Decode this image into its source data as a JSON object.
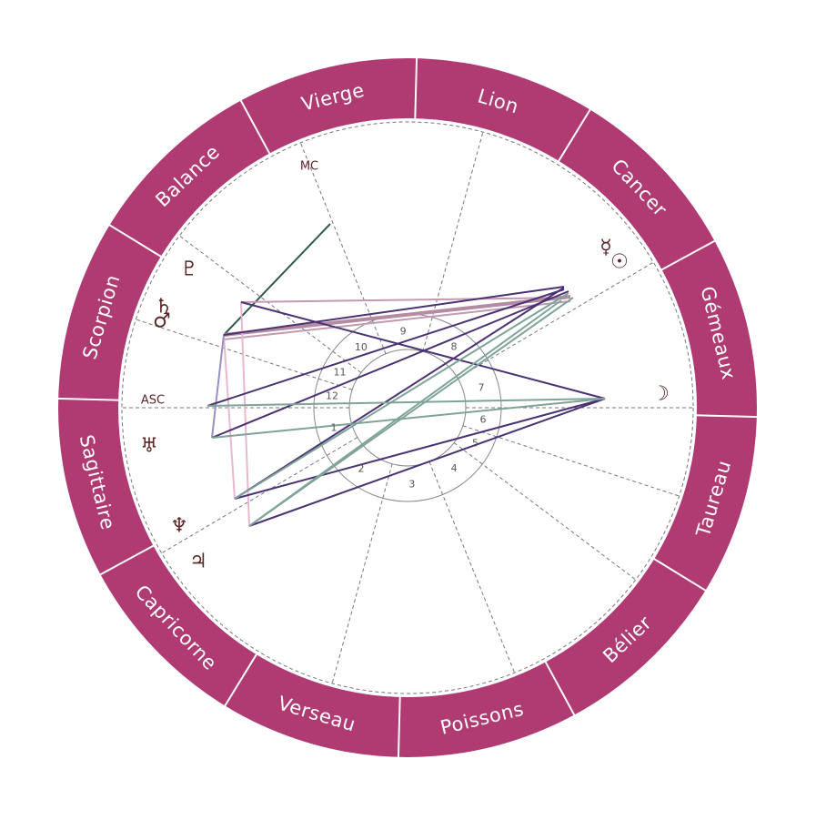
{
  "zodiac": [
    "Gémeaux",
    "Cancer",
    "Lion",
    "Vierge",
    "Balance",
    "Scorpion",
    "Sagittaire",
    "Capricorne",
    "Verseau",
    "Poissons",
    "Bélier",
    "Taureau"
  ],
  "houses": [
    "1",
    "2",
    "3",
    "4",
    "5",
    "6",
    "7",
    "8",
    "9",
    "10",
    "11",
    "12"
  ],
  "angles": {
    "asc": "ASC",
    "mc": "MC"
  },
  "planets": [
    "☿",
    "☉",
    "☽",
    "♇",
    "♄",
    "♂",
    "♅",
    "♆",
    "♃"
  ]
}
